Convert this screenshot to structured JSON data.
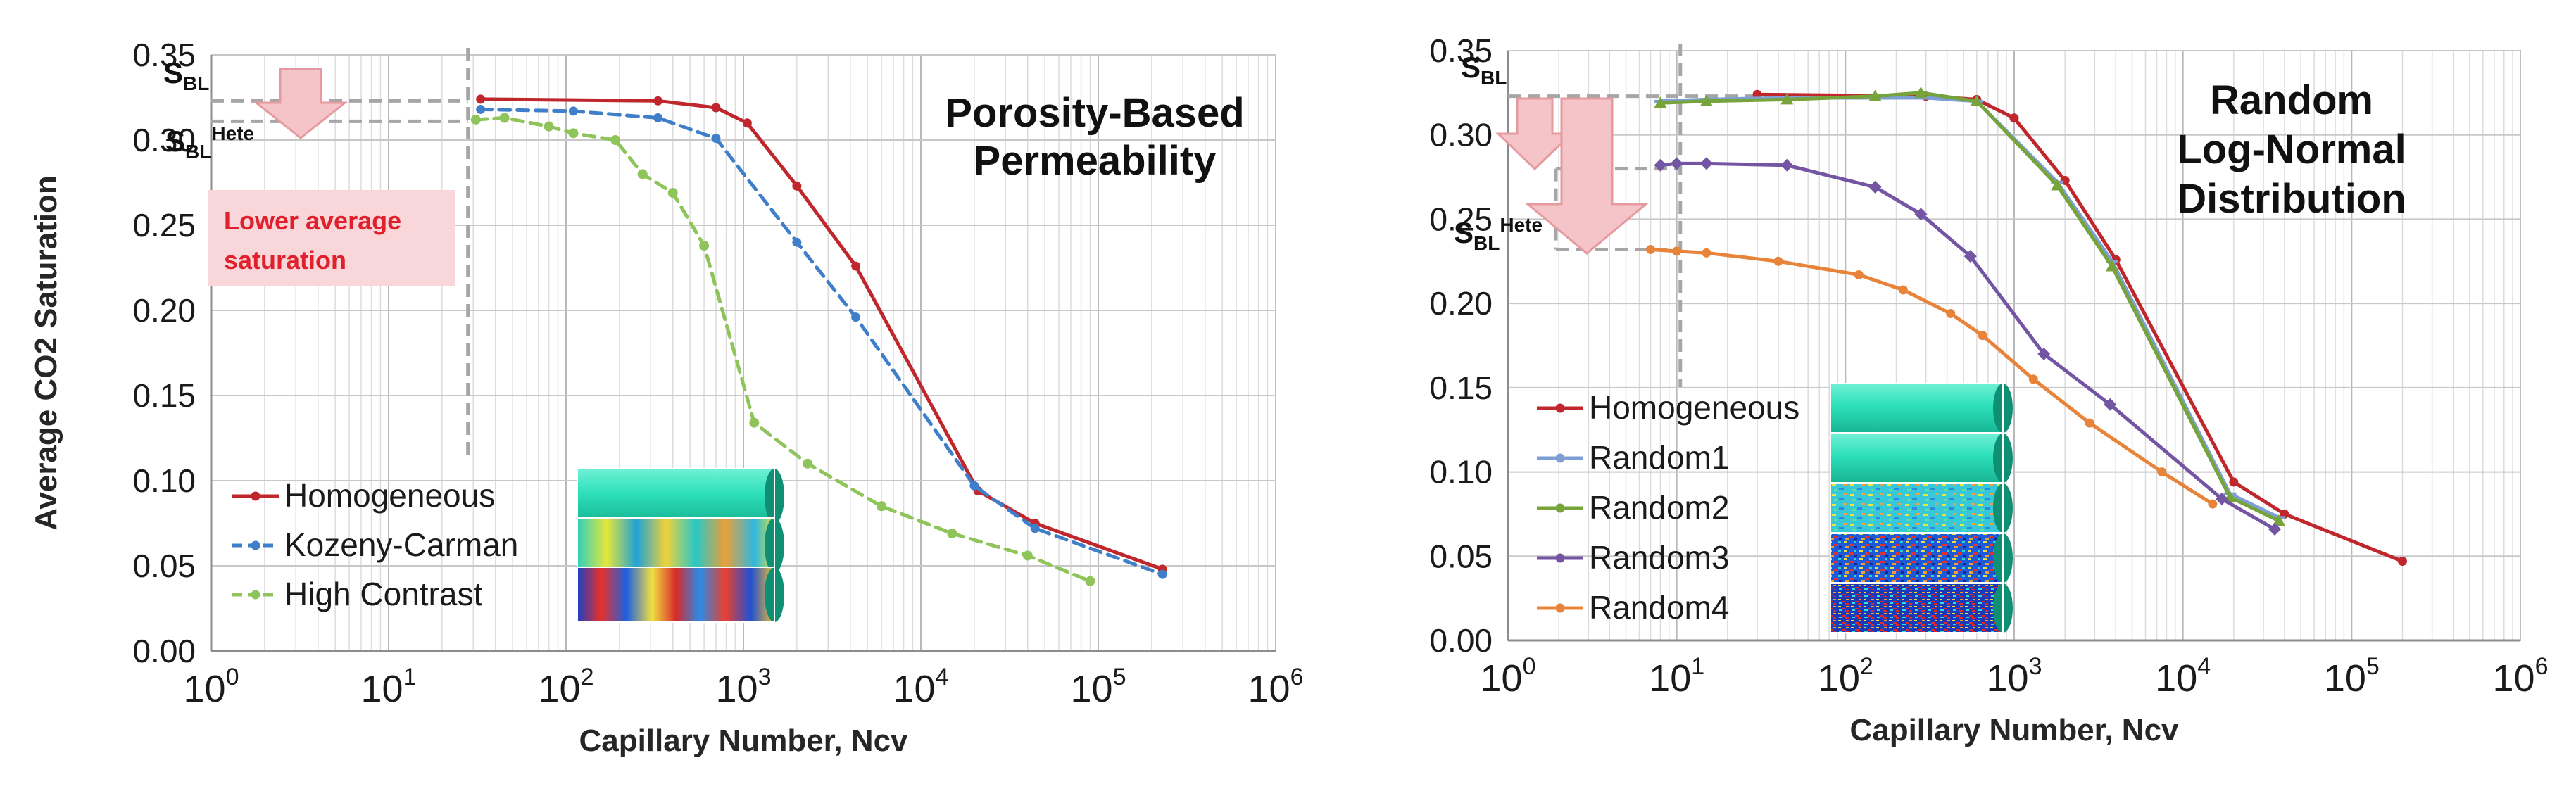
{
  "chart_data": [
    {
      "type": "line",
      "panel": "left",
      "title": "Porosity-Based Permeability",
      "title_lines": [
        "Porosity-Based",
        "Permeability"
      ],
      "xlabel": "Capillary Number, Ncv",
      "ylabel": "Average CO2 Saturation",
      "x_scale": "log",
      "xlim": [
        1,
        1000000
      ],
      "ylim": [
        0,
        0.35
      ],
      "grid": true,
      "x_ticks": [
        {
          "base": "10",
          "exp": "0"
        },
        {
          "base": "10",
          "exp": "1"
        },
        {
          "base": "10",
          "exp": "2"
        },
        {
          "base": "10",
          "exp": "3"
        },
        {
          "base": "10",
          "exp": "4"
        },
        {
          "base": "10",
          "exp": "5"
        },
        {
          "base": "10",
          "exp": "6"
        }
      ],
      "y_ticks": [
        "0.00",
        "0.05",
        "0.10",
        "0.15",
        "0.20",
        "0.25",
        "0.30",
        "0.35"
      ],
      "legend": "bottom-left",
      "series": [
        {
          "name": "Homogeneous",
          "color": "#c0272d",
          "dash": "solid",
          "x": [
            33,
            330,
            700,
            1050,
            2000,
            4300,
            21000,
            44000,
            230000
          ],
          "y": [
            0.324,
            0.323,
            0.319,
            0.31,
            0.273,
            0.226,
            0.094,
            0.075,
            0.048
          ]
        },
        {
          "name": "Kozeny-Carman",
          "color": "#3f7fc9",
          "dash": "dashed",
          "x": [
            33,
            110,
            330,
            700,
            2000,
            4300,
            20000,
            44000,
            230000
          ],
          "y": [
            0.318,
            0.317,
            0.313,
            0.301,
            0.24,
            0.196,
            0.097,
            0.072,
            0.045
          ]
        },
        {
          "name": "High Contrast",
          "color": "#8fc45a",
          "dash": "dashed",
          "x": [
            31,
            45,
            80,
            110,
            190,
            270,
            400,
            600,
            1150,
            2300,
            6000,
            15000,
            40000,
            90000
          ],
          "y": [
            0.312,
            0.313,
            0.308,
            0.304,
            0.3,
            0.28,
            0.269,
            0.238,
            0.134,
            0.11,
            0.085,
            0.069,
            0.056,
            0.041
          ]
        }
      ],
      "annotations": {
        "sbl": {
          "main": "S",
          "sub": "BL"
        },
        "sbl_hete": {
          "main": "S",
          "sub": "BL",
          "sup": "Hete"
        },
        "sbl_level": 0.323,
        "sbl_hete_level": 0.311,
        "vline_x": 28,
        "callout": [
          "Lower average",
          "saturation"
        ]
      }
    },
    {
      "type": "line",
      "panel": "right",
      "title": "Random Log-Normal Distribution",
      "title_lines": [
        "Random",
        "Log-Normal",
        "Distribution"
      ],
      "xlabel": "Capillary Number, Ncv",
      "ylabel": "",
      "x_scale": "log",
      "xlim": [
        1,
        1000000
      ],
      "ylim": [
        0,
        0.35
      ],
      "grid": true,
      "x_ticks": [
        {
          "base": "10",
          "exp": "0"
        },
        {
          "base": "10",
          "exp": "1"
        },
        {
          "base": "10",
          "exp": "2"
        },
        {
          "base": "10",
          "exp": "3"
        },
        {
          "base": "10",
          "exp": "4"
        },
        {
          "base": "10",
          "exp": "5"
        },
        {
          "base": "10",
          "exp": "6"
        }
      ],
      "y_ticks": [
        "0.00",
        "0.05",
        "0.10",
        "0.15",
        "0.20",
        "0.25",
        "0.30",
        "0.35"
      ],
      "legend": "bottom-left",
      "series": [
        {
          "name": "Homogeneous",
          "color": "#c0272d",
          "dash": "solid",
          "x": [
            30,
            300,
            600,
            1000,
            2000,
            4000,
            20000,
            40000,
            200000
          ],
          "y": [
            0.324,
            0.323,
            0.321,
            0.31,
            0.273,
            0.226,
            0.094,
            0.075,
            0.047
          ]
        },
        {
          "name": "Random1",
          "color": "#7d9fd4",
          "dash": "solid",
          "x": [
            8,
            15,
            45,
            150,
            300,
            600,
            1800,
            3800,
            19000,
            37000
          ],
          "y": [
            0.32,
            0.321,
            0.322,
            0.322,
            0.322,
            0.32,
            0.272,
            0.225,
            0.087,
            0.073
          ]
        },
        {
          "name": "Random2",
          "color": "#76a33a",
          "dash": "solid",
          "x": [
            8,
            15,
            45,
            150,
            280,
            600,
            1800,
            3800,
            19000,
            37000
          ],
          "y": [
            0.319,
            0.32,
            0.321,
            0.323,
            0.325,
            0.32,
            0.27,
            0.222,
            0.085,
            0.071
          ]
        },
        {
          "name": "Random3",
          "color": "#7355a3",
          "dash": "solid",
          "x": [
            8,
            10,
            15,
            45,
            150,
            280,
            550,
            1500,
            3700,
            17000,
            35000
          ],
          "y": [
            0.282,
            0.283,
            0.283,
            0.282,
            0.269,
            0.253,
            0.228,
            0.17,
            0.14,
            0.084,
            0.066
          ]
        },
        {
          "name": "Random4",
          "color": "#e8843a",
          "dash": "solid",
          "x": [
            7,
            10,
            15,
            40,
            120,
            220,
            420,
            650,
            1300,
            2800,
            7500,
            15000
          ],
          "y": [
            0.232,
            0.231,
            0.23,
            0.225,
            0.217,
            0.208,
            0.194,
            0.181,
            0.155,
            0.129,
            0.1,
            0.081
          ]
        }
      ],
      "annotations": {
        "sbl": {
          "main": "S",
          "sub": "BL"
        },
        "sbl_hete": {
          "main": "S",
          "sub": "BL",
          "sup": "Hete"
        },
        "sbl_level": 0.323,
        "sbl_hete_levels": [
          0.28,
          0.232
        ],
        "vline_x": 10.5
      }
    }
  ]
}
